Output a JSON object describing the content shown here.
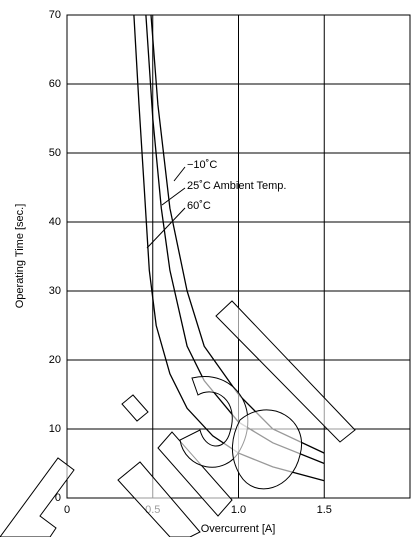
{
  "chart_data": {
    "type": "line",
    "x_label": "Overcurrent [A]",
    "y_label": "Operating Time [sec.]",
    "xlim": [
      0,
      2
    ],
    "ylim": [
      0,
      70
    ],
    "xticks": [
      0,
      0.5,
      {
        "value": 1,
        "label": "1.0"
      },
      1.5
    ],
    "yticks": [
      0,
      10,
      20,
      30,
      40,
      50,
      60,
      70
    ],
    "grid": true,
    "annotations": [
      "−10˚C",
      "25˚C Ambient Temp.",
      "60˚C"
    ],
    "series": [
      {
        "color": "#000000",
        "x": [
          0.49,
          0.53,
          0.6,
          0.7,
          0.8,
          1.0,
          1.2,
          1.5
        ],
        "values": [
          70,
          57,
          42,
          30,
          22,
          15,
          10,
          6.5
        ]
      },
      {
        "color": "#000000",
        "x": [
          0.46,
          0.5,
          0.55,
          0.6,
          0.7,
          0.8,
          1.0,
          1.2,
          1.5
        ],
        "values": [
          70,
          55,
          42,
          33,
          22,
          17,
          11,
          8,
          5
        ]
      },
      {
        "color": "#000000",
        "x": [
          0.39,
          0.42,
          0.45,
          0.48,
          0.52,
          0.6,
          0.7,
          0.85,
          1.0,
          1.2,
          1.5
        ],
        "values": [
          70,
          57,
          45,
          33,
          25,
          18,
          13,
          9,
          6.5,
          4.5,
          2.5
        ]
      }
    ]
  }
}
